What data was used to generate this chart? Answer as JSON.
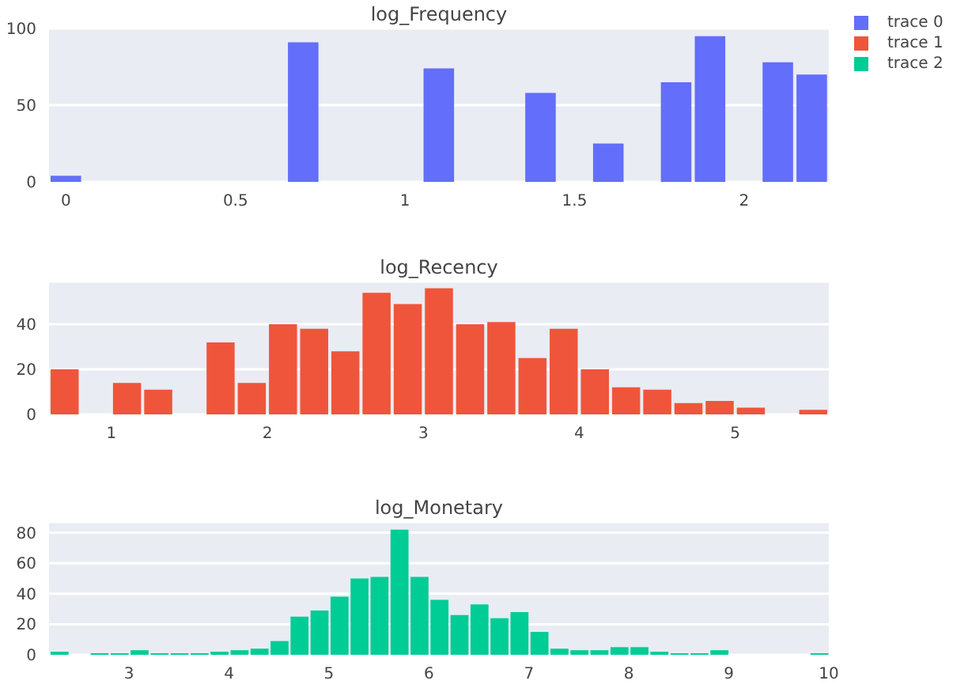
{
  "chart_data": [
    {
      "type": "histogram",
      "title": "log_Frequency",
      "bins": [
        -0.05,
        0.05,
        0.15,
        0.25,
        0.35,
        0.45,
        0.55,
        0.65,
        0.75,
        0.85,
        0.95,
        1.05,
        1.15,
        1.25,
        1.35,
        1.45,
        1.55,
        1.65,
        1.75,
        1.85,
        1.95,
        2.05,
        2.15,
        2.25
      ],
      "series": [
        {
          "name": "trace 0",
          "color": "#636efa",
          "values": [
            4,
            0,
            0,
            0,
            0,
            0,
            0,
            91,
            0,
            0,
            0,
            74,
            0,
            0,
            58,
            0,
            25,
            0,
            65,
            95,
            0,
            78,
            70
          ]
        }
      ],
      "xlim": [
        -0.05,
        2.25
      ],
      "xticks": [
        0,
        0.5,
        1,
        1.5,
        2
      ],
      "ylim": [
        0,
        100
      ],
      "yticks": [
        0,
        50,
        100
      ],
      "grid": "y",
      "legend": "top right"
    },
    {
      "type": "histogram",
      "title": "log_Recency",
      "bins": [
        0.6,
        0.8,
        1.0,
        1.2,
        1.4,
        1.6,
        1.8,
        2.0,
        2.2,
        2.4,
        2.6,
        2.8,
        3.0,
        3.2,
        3.4,
        3.6,
        3.8,
        4.0,
        4.2,
        4.4,
        4.6,
        4.8,
        5.0,
        5.2,
        5.4,
        5.6
      ],
      "series": [
        {
          "name": "trace 1",
          "color": "#ef553b",
          "values": [
            20,
            0,
            14,
            11,
            0,
            32,
            14,
            40,
            38,
            28,
            54,
            49,
            56,
            40,
            41,
            25,
            38,
            20,
            12,
            11,
            5,
            6,
            3,
            0,
            2
          ]
        }
      ],
      "xlim": [
        0.6,
        5.6
      ],
      "xticks": [
        1,
        2,
        3,
        4,
        5
      ],
      "ylim": [
        0,
        59
      ],
      "yticks": [
        0,
        20,
        40
      ],
      "grid": "y",
      "legend": "top right"
    },
    {
      "type": "histogram",
      "title": "log_Monetary",
      "bins": [
        2.2,
        2.4,
        2.6,
        2.8,
        3.0,
        3.2,
        3.4,
        3.6,
        3.8,
        4.0,
        4.2,
        4.4,
        4.6,
        4.8,
        5.0,
        5.2,
        5.4,
        5.6,
        5.8,
        6.0,
        6.2,
        6.4,
        6.6,
        6.8,
        7.0,
        7.2,
        7.4,
        7.6,
        7.8,
        8.0,
        8.2,
        8.4,
        8.6,
        8.8,
        9.0,
        9.2,
        9.4,
        9.6,
        9.8,
        10.0
      ],
      "series": [
        {
          "name": "trace 2",
          "color": "#00cc96",
          "values": [
            2,
            0,
            1,
            1,
            3,
            1,
            1,
            1,
            2,
            3,
            4,
            9,
            25,
            29,
            38,
            50,
            51,
            82,
            51,
            36,
            26,
            33,
            24,
            28,
            15,
            4,
            3,
            3,
            5,
            5,
            2,
            1,
            1,
            3,
            0,
            0,
            0,
            0,
            1
          ]
        }
      ],
      "xlim": [
        2.2,
        10
      ],
      "xticks": [
        3,
        4,
        5,
        6,
        7,
        8,
        9,
        10
      ],
      "ylim": [
        0,
        87
      ],
      "yticks": [
        0,
        20,
        40,
        60,
        80
      ],
      "grid": "y",
      "legend": "top right"
    }
  ]
}
